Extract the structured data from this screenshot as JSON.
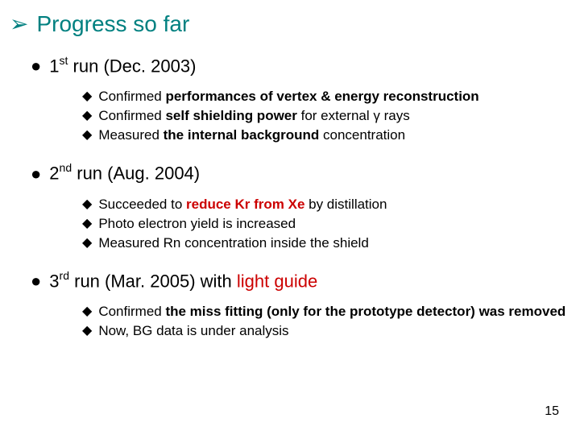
{
  "title": {
    "color": "#008080",
    "bullet_glyph": "➢",
    "text": "Progress so far"
  },
  "sections": [
    {
      "bullet_glyph": "●",
      "ord_num": "1",
      "ord_suffix": "st",
      "label_tail": " run (Dec. 2003)",
      "items": [
        {
          "bullet_glyph": "◆",
          "parts": [
            {
              "t": "Confirmed ",
              "b": false,
              "c": "#000000"
            },
            {
              "t": "performances of vertex & energy reconstruction",
              "b": true,
              "c": "#000000"
            }
          ]
        },
        {
          "bullet_glyph": "◆",
          "parts": [
            {
              "t": "Confirmed ",
              "b": false,
              "c": "#000000"
            },
            {
              "t": "self shielding power",
              "b": true,
              "c": "#000000"
            },
            {
              "t": " for external γ rays",
              "b": false,
              "c": "#000000"
            }
          ]
        },
        {
          "bullet_glyph": "◆",
          "parts": [
            {
              "t": "Measured ",
              "b": false,
              "c": "#000000"
            },
            {
              "t": "the internal background",
              "b": true,
              "c": "#000000"
            },
            {
              "t": " concentration",
              "b": false,
              "c": "#000000"
            }
          ]
        }
      ]
    },
    {
      "bullet_glyph": "●",
      "ord_num": "2",
      "ord_suffix": "nd",
      "label_tail": " run (Aug. 2004)",
      "items": [
        {
          "bullet_glyph": "◆",
          "parts": [
            {
              "t": "Succeeded to ",
              "b": false,
              "c": "#000000"
            },
            {
              "t": "reduce Kr from Xe",
              "b": true,
              "c": "#cc0000"
            },
            {
              "t": " by distillation",
              "b": false,
              "c": "#000000"
            }
          ]
        },
        {
          "bullet_glyph": "◆",
          "parts": [
            {
              "t": "Photo electron yield is increased",
              "b": false,
              "c": "#000000"
            }
          ]
        },
        {
          "bullet_glyph": "◆",
          "parts": [
            {
              "t": "Measured Rn concentration inside the shield",
              "b": false,
              "c": "#000000"
            }
          ]
        }
      ]
    },
    {
      "bullet_glyph": "●",
      "ord_num": "3",
      "ord_suffix": "rd",
      "label_tail_plain": " run (Mar. 2005)  with ",
      "label_tail_accent": "light guide",
      "accent_color": "#cc0000",
      "items": [
        {
          "bullet_glyph": "◆",
          "parts": [
            {
              "t": "Confirmed ",
              "b": false,
              "c": "#000000"
            },
            {
              "t": "the miss fitting (only for the prototype detector) was removed",
              "b": true,
              "c": "#000000"
            }
          ]
        },
        {
          "bullet_glyph": "◆",
          "parts": [
            {
              "t": "Now, BG data is under analysis",
              "b": false,
              "c": "#000000"
            }
          ]
        }
      ]
    }
  ],
  "page_number": "15"
}
